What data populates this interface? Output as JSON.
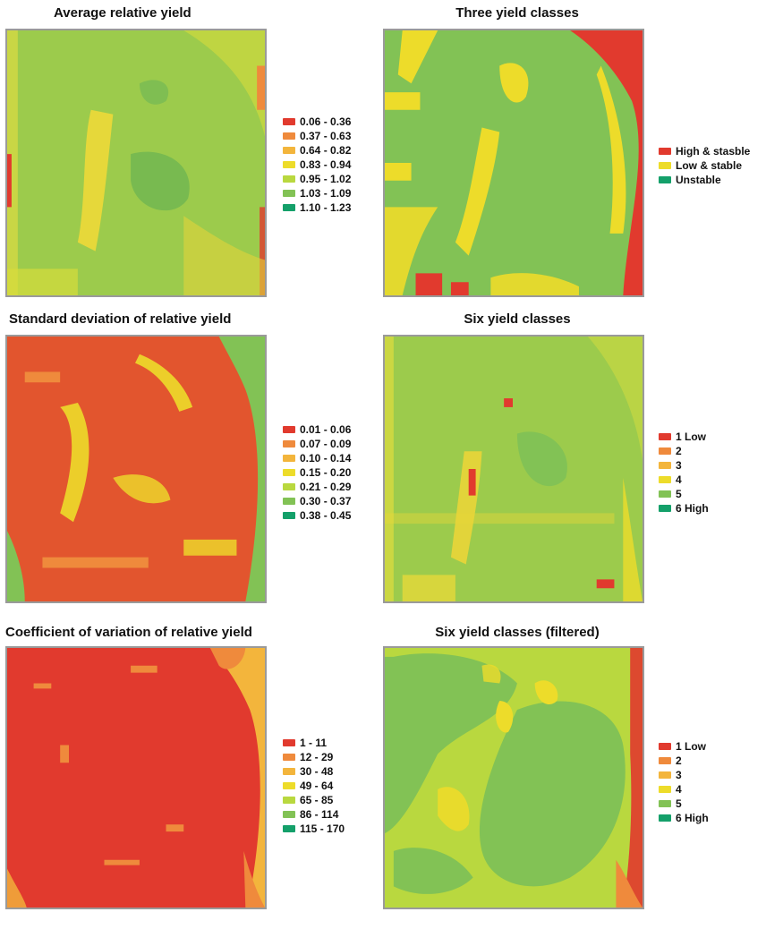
{
  "colors": {
    "red": "#e13a2e",
    "orange": "#ef8a3c",
    "light_orange": "#f3b53c",
    "yellow": "#eddc2a",
    "yellow_green": "#b9d83f",
    "green": "#82c255",
    "teal": "#14a06a"
  },
  "panels": [
    {
      "id": "avg",
      "title": "Average relative yield",
      "legend": [
        "0.06 - 0.36",
        "0.37 - 0.63",
        "0.64 - 0.82",
        "0.83 - 0.94",
        "0.95 - 1.02",
        "1.03 - 1.09",
        "1.10 - 1.23"
      ],
      "legend_colors": [
        "#e13a2e",
        "#ef8a3c",
        "#f3b53c",
        "#eddc2a",
        "#b9d83f",
        "#82c255",
        "#14a06a"
      ]
    },
    {
      "id": "three",
      "title": "Three yield classes",
      "legend": [
        "High & stasble",
        "Low & stable",
        "Unstable"
      ],
      "legend_colors": [
        "#e13a2e",
        "#eddc2a",
        "#14a06a"
      ]
    },
    {
      "id": "sd",
      "title": "Standard deviation of relative yield",
      "legend": [
        "0.01 - 0.06",
        "0.07 - 0.09",
        "0.10 - 0.14",
        "0.15 - 0.20",
        "0.21 - 0.29",
        "0.30 - 0.37",
        "0.38 - 0.45"
      ],
      "legend_colors": [
        "#e13a2e",
        "#ef8a3c",
        "#f3b53c",
        "#eddc2a",
        "#b9d83f",
        "#82c255",
        "#14a06a"
      ]
    },
    {
      "id": "six",
      "title": "Six yield classes",
      "legend": [
        "1 Low",
        "2",
        "3",
        "4",
        "5",
        "6 High"
      ],
      "legend_colors": [
        "#e13a2e",
        "#ef8a3c",
        "#f3b53c",
        "#eddc2a",
        "#82c255",
        "#14a06a"
      ]
    },
    {
      "id": "cv",
      "title": "Coefficient of variation of relative yield",
      "legend": [
        "1 - 11",
        "12 - 29",
        "30 - 48",
        "49 - 64",
        "65 - 85",
        "86 - 114",
        "115 - 170"
      ],
      "legend_colors": [
        "#e13a2e",
        "#ef8a3c",
        "#f3b53c",
        "#eddc2a",
        "#b9d83f",
        "#82c255",
        "#14a06a"
      ]
    },
    {
      "id": "sixf",
      "title": "Six yield classes (filtered)",
      "legend": [
        "1 Low",
        "2",
        "3",
        "4",
        "5",
        "6 High"
      ],
      "legend_colors": [
        "#e13a2e",
        "#ef8a3c",
        "#f3b53c",
        "#eddc2a",
        "#82c255",
        "#14a06a"
      ]
    }
  ]
}
